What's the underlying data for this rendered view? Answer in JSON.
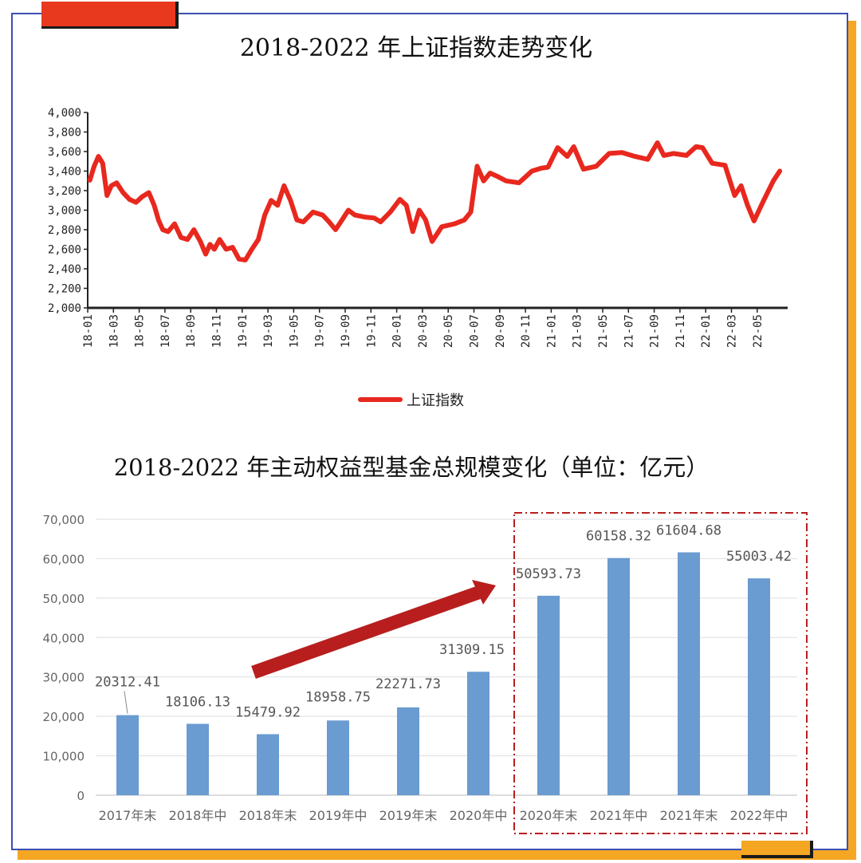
{
  "chart_data": [
    {
      "type": "line",
      "title": "2018-2022 年上证指数走势变化",
      "ylim": [
        2000,
        4000
      ],
      "yticks": [
        2000,
        2200,
        2400,
        2600,
        2800,
        3000,
        3200,
        3400,
        3600,
        3800,
        4000
      ],
      "ytick_labels": [
        "2,000",
        "2,200",
        "2,400",
        "2,600",
        "2,800",
        "3,000",
        "3,200",
        "3,400",
        "3,600",
        "3,800",
        "4,000"
      ],
      "x_tick_labels": [
        "18-01",
        "18-03",
        "18-05",
        "18-07",
        "18-09",
        "18-11",
        "19-01",
        "19-03",
        "19-05",
        "19-07",
        "19-09",
        "19-11",
        "20-01",
        "20-03",
        "20-05",
        "20-07",
        "20-09",
        "20-11",
        "21-01",
        "21-03",
        "21-05",
        "21-07",
        "21-09",
        "21-11",
        "22-01",
        "22-03",
        "22-05"
      ],
      "legend": "bottom",
      "line_color": "#e8281e",
      "series": [
        {
          "name": "上证指数",
          "x": [
            "2018-01",
            "2018-01",
            "2018-01",
            "2018-02",
            "2018-02",
            "2018-02",
            "2018-03",
            "2018-03",
            "2018-04",
            "2018-04",
            "2018-05",
            "2018-05",
            "2018-06",
            "2018-06",
            "2018-06",
            "2018-07",
            "2018-07",
            "2018-08",
            "2018-08",
            "2018-09",
            "2018-09",
            "2018-10",
            "2018-10",
            "2018-10",
            "2018-11",
            "2018-11",
            "2018-12",
            "2018-12",
            "2019-01",
            "2019-01",
            "2019-02",
            "2019-02",
            "2019-03",
            "2019-03",
            "2019-04",
            "2019-04",
            "2019-05",
            "2019-05",
            "2019-06",
            "2019-07",
            "2019-07",
            "2019-08",
            "2019-08",
            "2019-09",
            "2019-09",
            "2019-10",
            "2019-11",
            "2019-11",
            "2019-12",
            "2020-01",
            "2020-01",
            "2020-02",
            "2020-02",
            "2020-03",
            "2020-03",
            "2020-04",
            "2020-05",
            "2020-06",
            "2020-06",
            "2020-07",
            "2020-07",
            "2020-08",
            "2020-08",
            "2020-09",
            "2020-10",
            "2020-11",
            "2020-12",
            "2020-12",
            "2021-01",
            "2021-02",
            "2021-02",
            "2021-03",
            "2021-04",
            "2021-05",
            "2021-06",
            "2021-07",
            "2021-08",
            "2021-09",
            "2021-09",
            "2021-10",
            "2021-11",
            "2021-12",
            "2021-12",
            "2022-01",
            "2022-02",
            "2022-03",
            "2022-03",
            "2022-04",
            "2022-04",
            "2022-05",
            "2022-06",
            "2022-06"
          ],
          "values": [
            3307,
            3450,
            3550,
            3480,
            3150,
            3250,
            3280,
            3180,
            3110,
            3080,
            3140,
            3180,
            3050,
            2900,
            2800,
            2780,
            2860,
            2720,
            2700,
            2800,
            2680,
            2550,
            2650,
            2600,
            2700,
            2600,
            2620,
            2500,
            2490,
            2600,
            2700,
            2950,
            3100,
            3050,
            3250,
            3100,
            2900,
            2880,
            2980,
            2950,
            2880,
            2800,
            2900,
            3000,
            2950,
            2930,
            2920,
            2880,
            2980,
            3110,
            3050,
            2780,
            3000,
            2900,
            2680,
            2830,
            2860,
            2900,
            2980,
            3450,
            3300,
            3380,
            3350,
            3300,
            3280,
            3400,
            3430,
            3440,
            3640,
            3550,
            3650,
            3420,
            3450,
            3580,
            3590,
            3550,
            3520,
            3690,
            3560,
            3580,
            3560,
            3650,
            3640,
            3480,
            3460,
            3150,
            3250,
            3050,
            2890,
            3100,
            3300,
            3400
          ]
        }
      ]
    },
    {
      "type": "bar",
      "title": "2018-2022 年主动权益型基金总规模变化（单位：亿元）",
      "ylim": [
        0,
        70000
      ],
      "yticks": [
        0,
        10000,
        20000,
        30000,
        40000,
        50000,
        60000,
        70000
      ],
      "ytick_labels": [
        "0",
        "10,000",
        "20,000",
        "30,000",
        "40,000",
        "50,000",
        "60,000",
        "70,000"
      ],
      "categories": [
        "2017年末",
        "2018年中",
        "2018年末",
        "2019年中",
        "2019年末",
        "2020年中",
        "2020年末",
        "2021年中",
        "2021年末",
        "2022年中"
      ],
      "values": [
        20312.41,
        18106.13,
        15479.92,
        18958.75,
        22271.73,
        31309.15,
        50593.73,
        60158.32,
        61604.68,
        55003.42
      ],
      "value_labels": [
        "20312.41",
        "18106.13",
        "15479.92",
        "18958.75",
        "22271.73",
        "31309.15",
        "50593.73",
        "60158.32",
        "61604.68",
        "55003.42"
      ],
      "bar_color": "#6a9bd1",
      "grid": true,
      "highlight": {
        "from_category": "2020年末",
        "to_category": "2022年中",
        "color": "#b81e1e"
      }
    }
  ]
}
